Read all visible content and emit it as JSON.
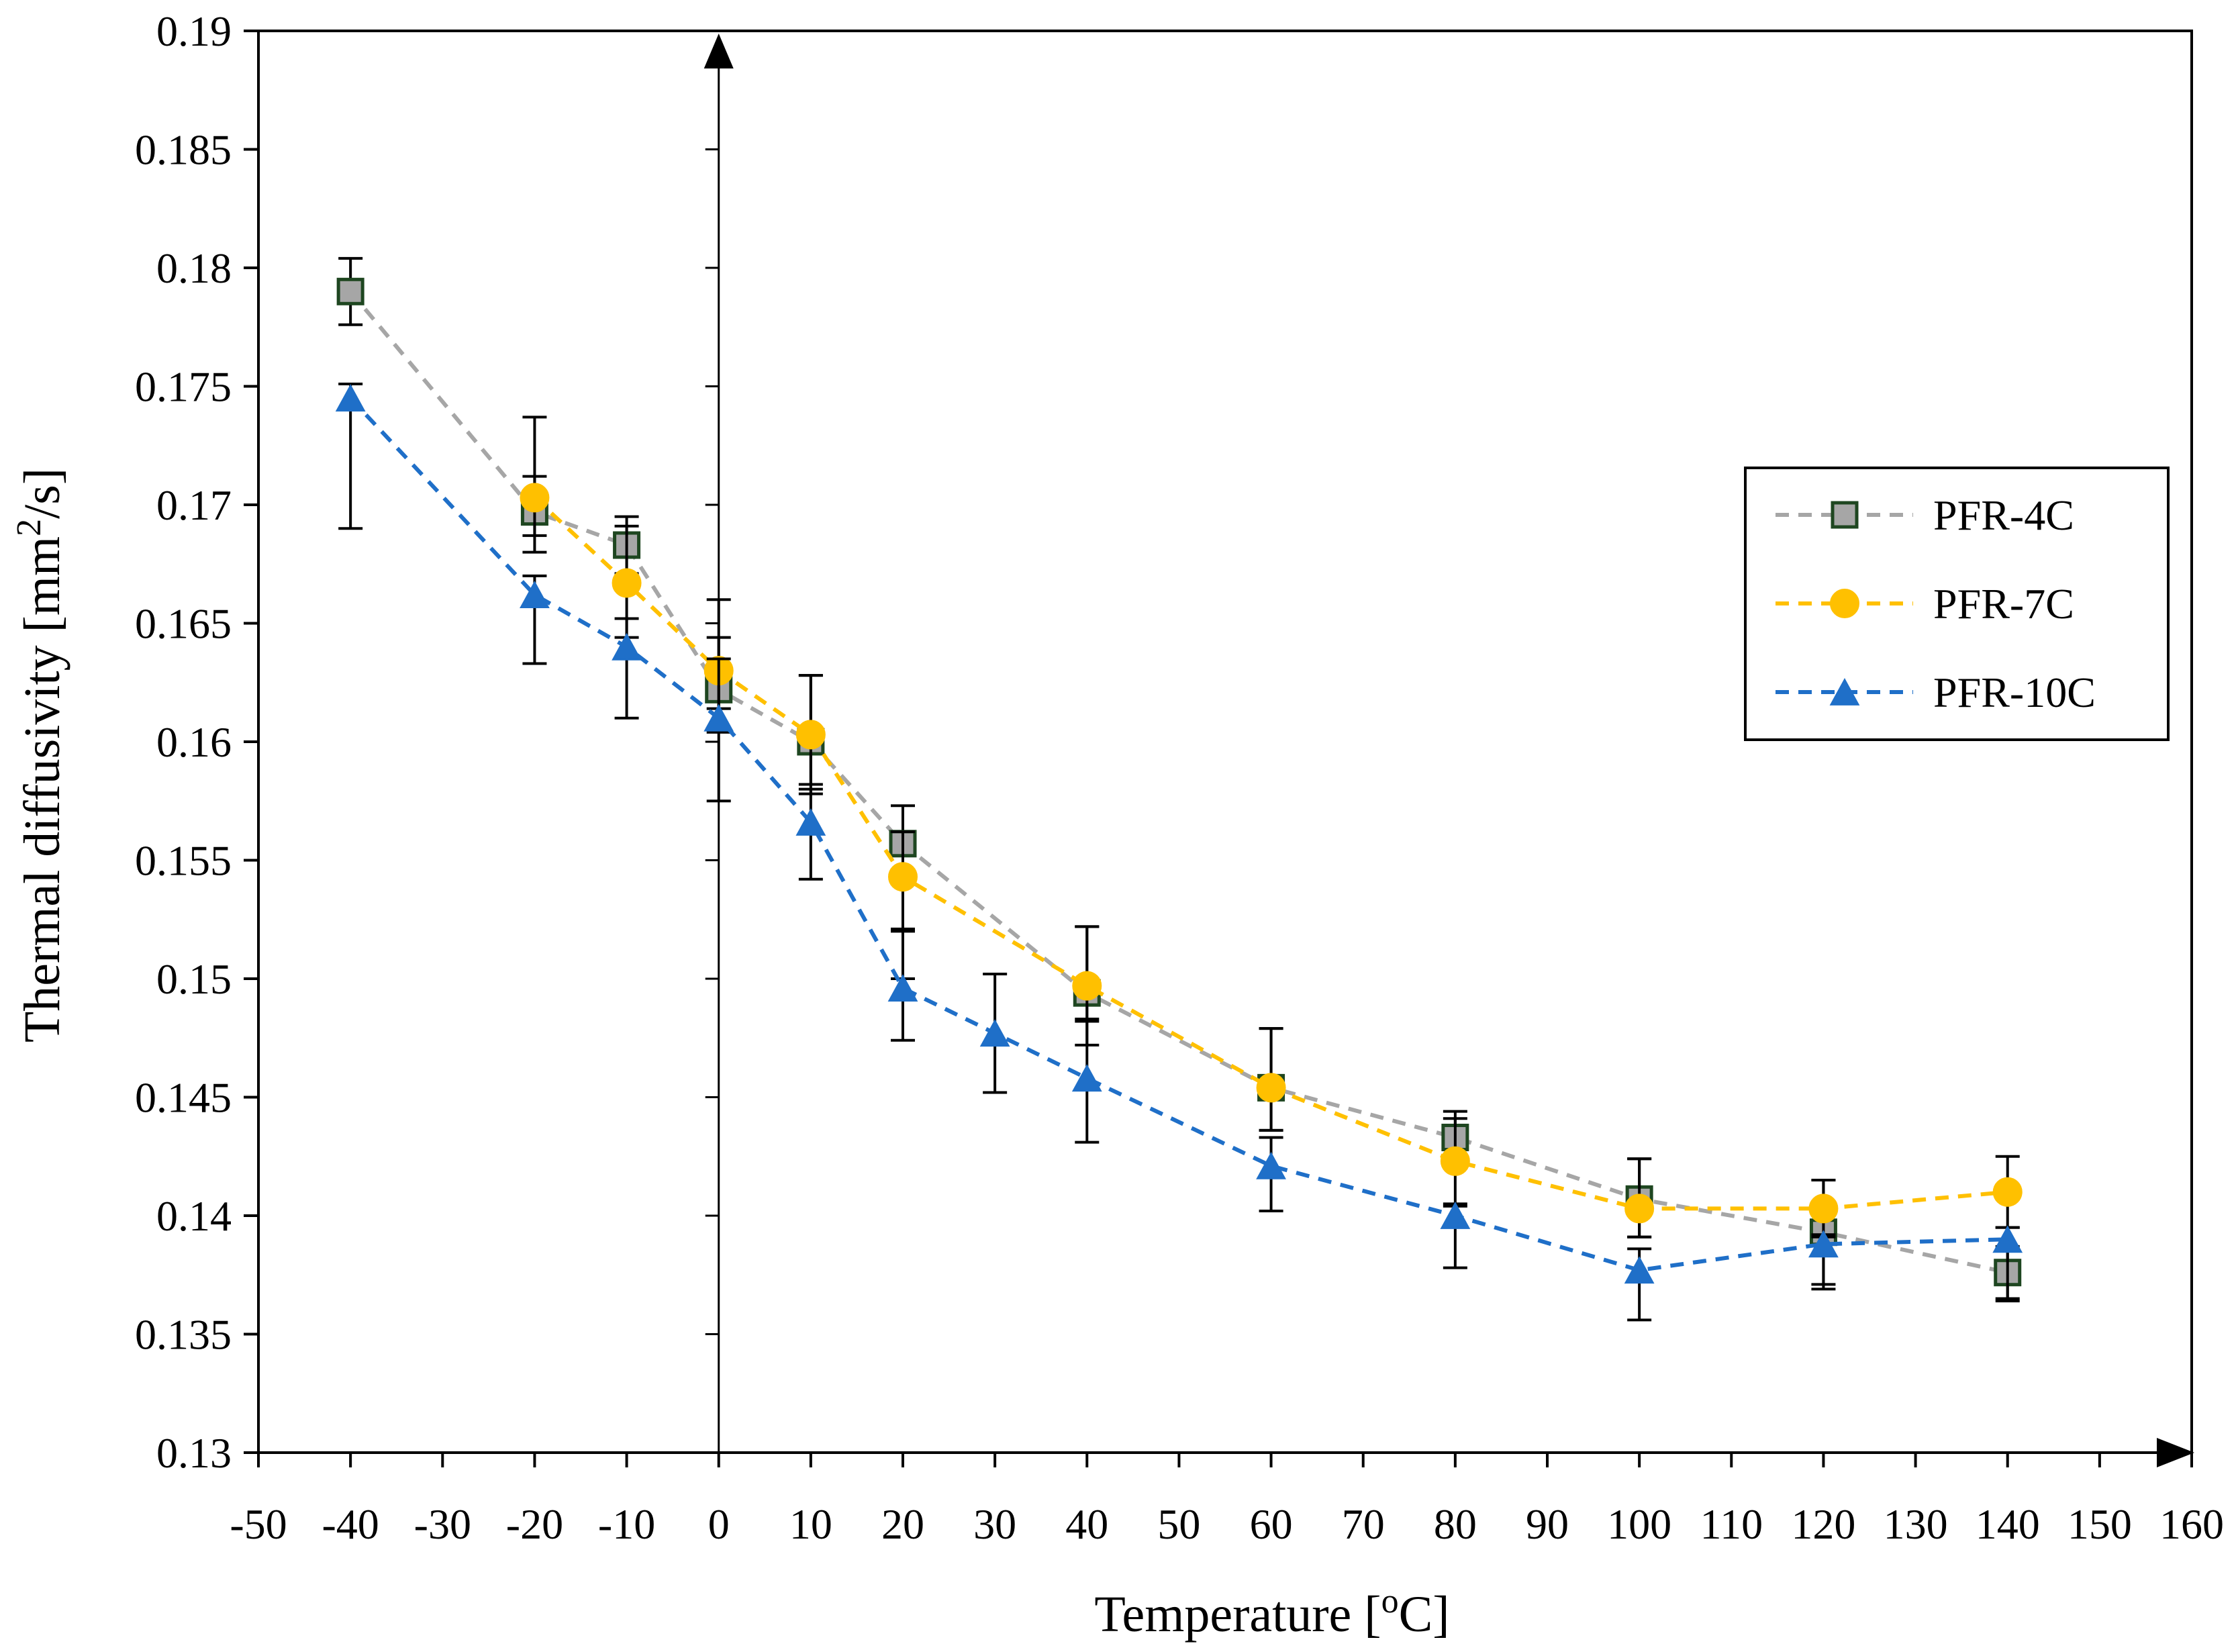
{
  "chart_data": {
    "type": "line",
    "title": "",
    "xlabel": "Temperature [",
    "xlabel_sup": "o",
    "xlabel_end": "C]",
    "ylabel": "Thermal diffusivity [mm",
    "ylabel_sup": "2",
    "ylabel_end": "/s]",
    "xlim": [
      -50,
      160
    ],
    "ylim": [
      0.13,
      0.19
    ],
    "x_ticks": [
      -50,
      -40,
      -30,
      -20,
      -10,
      0,
      10,
      20,
      30,
      40,
      50,
      60,
      70,
      80,
      90,
      100,
      110,
      120,
      130,
      140,
      150,
      160
    ],
    "x_tick_labels": [
      "-50",
      "-40",
      "-30",
      "-20",
      "-10",
      "0",
      "10",
      "20",
      "30",
      "40",
      "50",
      "60",
      "70",
      "80",
      "90",
      "100",
      "110",
      "120",
      "130",
      "140",
      "150",
      "160"
    ],
    "y_ticks": [
      0.13,
      0.135,
      0.14,
      0.145,
      0.15,
      0.155,
      0.16,
      0.165,
      0.17,
      0.175,
      0.18,
      0.185,
      0.19
    ],
    "y_tick_labels": [
      "0.13",
      "0.135",
      "0.14",
      "0.145",
      "0.15",
      "0.155",
      "0.16",
      "0.165",
      "0.17",
      "0.175",
      "0.18",
      "0.185",
      "0.19"
    ],
    "grid": false,
    "legend_position": "right",
    "series": [
      {
        "name": "PFR-4C",
        "marker": "square",
        "line_color": "#a6a6a6",
        "marker_fill": "#a6a6a6",
        "marker_stroke": "#1e4620",
        "x": [
          -40,
          -20,
          -10,
          0,
          10,
          20,
          40,
          60,
          80,
          100,
          120,
          140
        ],
        "values": [
          0.179,
          0.1697,
          0.1683,
          0.1622,
          0.16,
          0.1557,
          0.1494,
          0.1454,
          0.1433,
          0.1407,
          0.1393,
          0.1376
        ],
        "err_plus": [
          0.0014,
          0.004,
          0.0012,
          0.0038,
          0.0028,
          0.0016,
          0.0028,
          0.0025,
          0.0011,
          0.0017,
          0.0022,
          0.0011
        ],
        "err_minus": [
          0.0014,
          0.0017,
          0.0012,
          0.0018,
          0.0018,
          0.0036,
          0.0012,
          0.0018,
          0.0011,
          0.0016,
          0.0022,
          0.0011
        ]
      },
      {
        "name": "PFR-7C",
        "marker": "circle",
        "line_color": "#ffc000",
        "marker_fill": "#ffc000",
        "marker_stroke": "#ffc000",
        "x": [
          -20,
          -10,
          0,
          10,
          20,
          40,
          60,
          80,
          100,
          120,
          140
        ],
        "values": [
          0.1703,
          0.1667,
          0.163,
          0.1603,
          0.1543,
          0.1497,
          0.1454,
          0.1423,
          0.1403,
          0.1403,
          0.141
        ],
        "err_plus": [
          0.0009,
          0.0024,
          0.0014,
          0.0025,
          0.0019,
          0.0025,
          0.0025,
          0.0018,
          0.0021,
          0.0012,
          0.0015
        ],
        "err_minus": [
          0.0016,
          0.0023,
          0.0016,
          0.0025,
          0.0043,
          0.0025,
          0.0018,
          0.0018,
          0.0012,
          0.0012,
          0.0015
        ]
      },
      {
        "name": "PFR-10C",
        "marker": "triangle",
        "line_color": "#1f6fc8",
        "marker_fill": "#1f6fc8",
        "marker_stroke": "#1f6fc8",
        "x": [
          -40,
          -20,
          -10,
          0,
          10,
          20,
          30,
          40,
          60,
          80,
          100,
          120,
          140
        ],
        "values": [
          0.1745,
          0.1662,
          0.164,
          0.161,
          0.1566,
          0.1496,
          0.1477,
          0.1458,
          0.1421,
          0.14,
          0.1377,
          0.1388,
          0.139
        ],
        "err_plus": [
          0.0006,
          0.0008,
          0.0012,
          0.0025,
          0.0014,
          0.0024,
          0.0025,
          0.0025,
          0.0012,
          0.0004,
          0.0009,
          0.0004,
          0.0005
        ],
        "err_minus": [
          0.0055,
          0.0029,
          0.003,
          0.0035,
          0.0024,
          0.0022,
          0.0025,
          0.0027,
          0.0019,
          0.0022,
          0.0021,
          0.0019,
          0.0026
        ]
      }
    ]
  },
  "legend": {
    "items": [
      "PFR-4C",
      "PFR-7C",
      "PFR-10C"
    ]
  }
}
